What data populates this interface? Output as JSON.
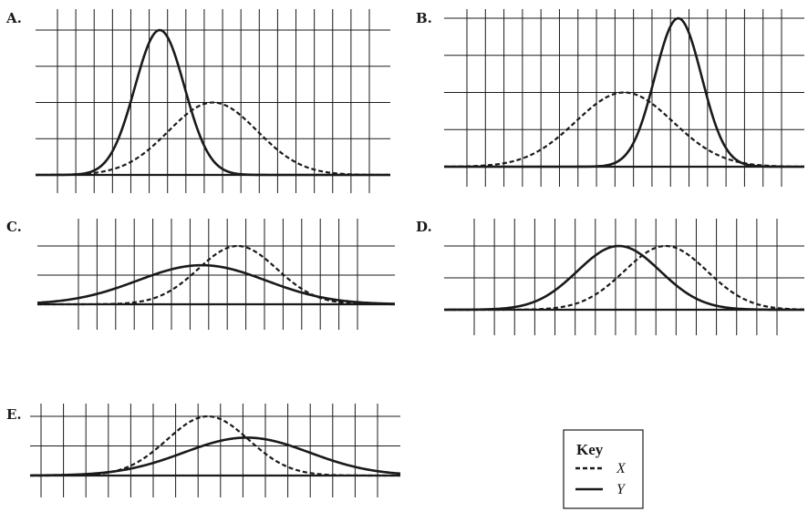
{
  "colors": {
    "line": "#1a1a1a",
    "grid": "#1a1a1a",
    "background": "#ffffff"
  },
  "chart_data": [
    {
      "type": "line",
      "panel": "A.",
      "xlim": [
        0,
        20
      ],
      "ylim": [
        0,
        1.0
      ],
      "y_gridlines": 4,
      "x_gridlines": 18,
      "grid": true,
      "series": [
        {
          "key": "X",
          "style": "dashed",
          "mean": 10,
          "sd": 2.5,
          "peak": 0.5
        },
        {
          "key": "Y",
          "style": "solid",
          "mean": 7,
          "sd": 1.4,
          "peak": 1.0
        }
      ]
    },
    {
      "type": "line",
      "panel": "B.",
      "xlim": [
        0,
        20
      ],
      "ylim": [
        0,
        1.0
      ],
      "y_gridlines": 4,
      "x_gridlines": 18,
      "grid": true,
      "series": [
        {
          "key": "X",
          "style": "dashed",
          "mean": 10,
          "sd": 2.7,
          "peak": 0.5
        },
        {
          "key": "Y",
          "style": "solid",
          "mean": 13,
          "sd": 1.3,
          "peak": 1.0
        }
      ]
    },
    {
      "type": "line",
      "panel": "C.",
      "xlim": [
        0,
        20
      ],
      "ylim": [
        0,
        1.0
      ],
      "y_gridlines": 2,
      "x_gridlines": 16,
      "grid": true,
      "series": [
        {
          "key": "X",
          "style": "dashed",
          "mean": 11.2,
          "sd": 2.2,
          "peak": 1.0
        },
        {
          "key": "Y",
          "style": "solid",
          "mean": 9.2,
          "sd": 3.6,
          "peak": 0.67
        }
      ]
    },
    {
      "type": "line",
      "panel": "D.",
      "xlim": [
        0,
        20
      ],
      "ylim": [
        0,
        1.0
      ],
      "y_gridlines": 2,
      "x_gridlines": 16,
      "grid": true,
      "series": [
        {
          "key": "X",
          "style": "dashed",
          "mean": 12.3,
          "sd": 2.3,
          "peak": 1.0
        },
        {
          "key": "Y",
          "style": "solid",
          "mean": 9.7,
          "sd": 2.3,
          "peak": 1.0
        }
      ]
    },
    {
      "type": "line",
      "panel": "E.",
      "xlim": [
        0,
        20
      ],
      "ylim": [
        0,
        1.0
      ],
      "y_gridlines": 2,
      "x_gridlines": 16,
      "grid": true,
      "series": [
        {
          "key": "X",
          "style": "dashed",
          "mean": 9.6,
          "sd": 2.2,
          "peak": 1.0
        },
        {
          "key": "Y",
          "style": "solid",
          "mean": 11.7,
          "sd": 3.4,
          "peak": 0.64
        }
      ]
    }
  ],
  "key": {
    "title": "Key",
    "items": [
      {
        "label": "X",
        "style": "dashed"
      },
      {
        "label": "Y",
        "style": "solid"
      }
    ]
  }
}
